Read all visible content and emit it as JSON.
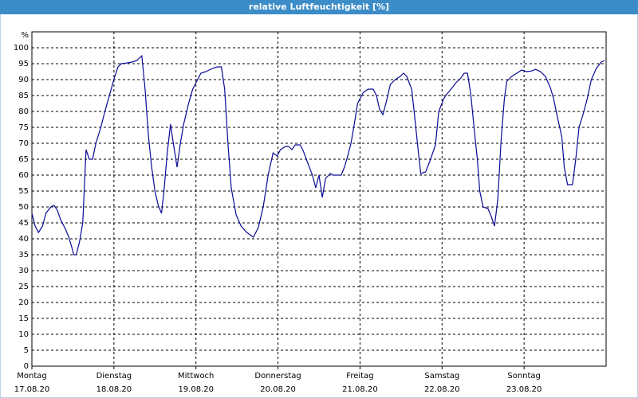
{
  "chart_data": {
    "type": "line",
    "title": "relative Luftfeuchtigkeit [%]",
    "y_label": "%",
    "xlim": [
      0,
      7
    ],
    "xticks": [
      {
        "value": 0,
        "label": "Montag"
      },
      {
        "value": 1,
        "label": "Dienstag"
      },
      {
        "value": 2,
        "label": "Mittwoch"
      },
      {
        "value": 3,
        "label": "Donnerstag"
      },
      {
        "value": 4,
        "label": "Freitag"
      },
      {
        "value": 5,
        "label": "Samstag"
      },
      {
        "value": 6,
        "label": "Sonntag"
      }
    ],
    "xtick_dates": [
      "17.08.20",
      "18.08.20",
      "19.08.20",
      "20.08.20",
      "21.08.20",
      "22.08.20",
      "23.08.20"
    ],
    "ylim": [
      0,
      105
    ],
    "yticks": [
      0,
      5,
      10,
      15,
      20,
      25,
      30,
      35,
      40,
      45,
      50,
      55,
      60,
      65,
      70,
      75,
      80,
      85,
      90,
      95,
      100
    ],
    "grid": true,
    "x": [
      0,
      0.04,
      0.08,
      0.13,
      0.17,
      0.23,
      0.27,
      0.31,
      0.35,
      0.41,
      0.45,
      0.49,
      0.51,
      0.54,
      0.58,
      0.62,
      0.66,
      0.7,
      0.74,
      0.78,
      0.84,
      0.89,
      0.95,
      1.01,
      1.05,
      1.09,
      1.15,
      1.22,
      1.28,
      1.34,
      1.38,
      1.42,
      1.46,
      1.5,
      1.54,
      1.58,
      1.61,
      1.65,
      1.69,
      1.73,
      1.77,
      1.81,
      1.85,
      1.91,
      1.96,
      2.02,
      2.06,
      2.12,
      2.2,
      2.26,
      2.31,
      2.35,
      2.39,
      2.43,
      2.49,
      2.55,
      2.62,
      2.7,
      2.76,
      2.82,
      2.88,
      2.94,
      2.99,
      3.03,
      3.09,
      3.13,
      3.17,
      3.21,
      3.27,
      3.31,
      3.36,
      3.42,
      3.46,
      3.5,
      3.54,
      3.58,
      3.64,
      3.67,
      3.73,
      3.77,
      3.81,
      3.85,
      3.89,
      3.93,
      3.97,
      4.01,
      4.04,
      4.1,
      4.16,
      4.2,
      4.24,
      4.28,
      4.32,
      4.37,
      4.43,
      4.49,
      4.53,
      4.57,
      4.63,
      4.67,
      4.71,
      4.74,
      4.8,
      4.86,
      4.92,
      4.96,
      5.02,
      5.06,
      5.11,
      5.17,
      5.23,
      5.27,
      5.31,
      5.35,
      5.39,
      5.43,
      5.46,
      5.5,
      5.56,
      5.6,
      5.64,
      5.68,
      5.72,
      5.76,
      5.79,
      5.85,
      5.91,
      5.97,
      6.03,
      6.09,
      6.14,
      6.2,
      6.26,
      6.32,
      6.36,
      6.4,
      6.46,
      6.49,
      6.53,
      6.59,
      6.63,
      6.67,
      6.73,
      6.77,
      6.82,
      6.88,
      6.94,
      6.98
    ],
    "series": [
      {
        "color": "#0a0a96",
        "values": [
          48,
          44,
          42,
          44,
          48,
          50,
          50.5,
          49,
          46,
          43,
          40.5,
          37,
          35,
          35,
          39,
          45,
          68,
          65,
          65,
          70,
          75,
          80,
          85.5,
          91,
          94,
          95,
          95.2,
          95.5,
          96,
          97.5,
          87,
          72.5,
          62.5,
          55,
          50.5,
          48,
          55,
          67,
          76,
          69,
          62.5,
          70,
          76,
          82.5,
          87,
          90,
          92,
          92.5,
          93.5,
          94,
          94,
          87,
          70,
          56,
          47.5,
          44,
          42,
          40.5,
          43.5,
          50,
          60,
          67,
          66,
          68,
          69,
          69,
          68,
          69.5,
          69.5,
          67.5,
          64,
          60,
          56,
          60,
          53,
          59,
          60.5,
          60,
          60,
          60,
          62.5,
          66,
          70,
          76,
          82.5,
          84.5,
          86,
          87,
          87,
          85,
          80.5,
          79,
          83,
          88.5,
          90,
          91,
          92,
          91,
          87,
          77.5,
          67.5,
          60.5,
          61,
          65,
          69.5,
          80,
          84,
          85.5,
          87,
          89,
          90.5,
          92,
          92,
          85.5,
          75,
          65,
          55,
          50,
          49.5,
          47,
          44,
          52.5,
          71,
          84,
          89.5,
          91,
          92,
          93,
          92.5,
          92.7,
          93.2,
          92.5,
          91,
          87.5,
          84,
          79,
          72,
          62.5,
          57,
          57,
          65,
          75,
          80,
          84,
          90,
          93.5,
          95.5,
          96
        ]
      }
    ]
  }
}
